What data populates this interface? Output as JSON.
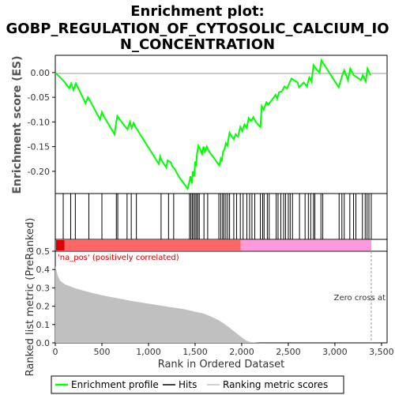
{
  "chart_data": {
    "type": "line",
    "title_lines": [
      "Enrichment plot:",
      "GOBP_REGULATION_OF_CYTOSOLIC_CALCIUM_IO",
      "N_CONCENTRATION"
    ],
    "es_panel": {
      "ylabel": "Enrichment score (ES)",
      "ylim": [
        -0.245,
        0.035
      ],
      "yticks": [
        0.0,
        -0.05,
        -0.1,
        -0.15,
        -0.2
      ],
      "ytick_labels": [
        "0.00",
        "-0.05",
        "-0.10",
        "-0.15",
        "-0.20"
      ],
      "series": {
        "name": "Enrichment profile",
        "color": "#00ff00",
        "x": [
          0,
          95,
          150,
          170,
          195,
          220,
          325,
          350,
          370,
          480,
          500,
          520,
          635,
          650,
          665,
          740,
          775,
          800,
          820,
          840,
          860,
          1110,
          1125,
          1140,
          1190,
          1205,
          1240,
          1255,
          1280,
          1330,
          1420,
          1440,
          1450,
          1465,
          1475,
          1490,
          1500,
          1510,
          1520,
          1535,
          1555,
          1575,
          1590,
          1605,
          1625,
          1650,
          1760,
          1775,
          1785,
          1800,
          1815,
          1830,
          1845,
          1870,
          1895,
          1915,
          1935,
          1960,
          1985,
          2005,
          2030,
          2055,
          2075,
          2100,
          2125,
          2150,
          2200,
          2215,
          2235,
          2265,
          2285,
          2365,
          2380,
          2400,
          2430,
          2460,
          2485,
          2510,
          2535,
          2600,
          2615,
          2665,
          2700,
          2725,
          2750,
          2770,
          2810,
          2835,
          2855,
          3040,
          3080,
          3100,
          3140,
          3165,
          3200,
          3280,
          3300,
          3330,
          3350,
          3380
        ],
        "y": [
          0.0,
          -0.018,
          -0.032,
          -0.022,
          -0.035,
          -0.022,
          -0.062,
          -0.05,
          -0.056,
          -0.095,
          -0.08,
          -0.088,
          -0.125,
          -0.105,
          -0.088,
          -0.107,
          -0.115,
          -0.1,
          -0.112,
          -0.102,
          -0.11,
          -0.185,
          -0.17,
          -0.178,
          -0.192,
          -0.178,
          -0.182,
          -0.19,
          -0.195,
          -0.212,
          -0.235,
          -0.22,
          -0.21,
          -0.225,
          -0.2,
          -0.21,
          -0.18,
          -0.19,
          -0.165,
          -0.148,
          -0.155,
          -0.165,
          -0.15,
          -0.16,
          -0.15,
          -0.16,
          -0.188,
          -0.175,
          -0.18,
          -0.16,
          -0.155,
          -0.143,
          -0.148,
          -0.122,
          -0.13,
          -0.135,
          -0.125,
          -0.13,
          -0.11,
          -0.118,
          -0.105,
          -0.112,
          -0.092,
          -0.098,
          -0.09,
          -0.1,
          -0.11,
          -0.068,
          -0.075,
          -0.06,
          -0.065,
          -0.045,
          -0.053,
          -0.04,
          -0.038,
          -0.028,
          -0.032,
          -0.022,
          -0.012,
          -0.02,
          -0.03,
          -0.02,
          -0.028,
          -0.01,
          -0.018,
          0.015,
          0.005,
          0.0,
          0.025,
          -0.03,
          -0.005,
          0.005,
          -0.015,
          0.008,
          -0.005,
          -0.015,
          -0.005,
          -0.018,
          0.008,
          -0.005
        ]
      }
    },
    "hits": [
      85,
      165,
      215,
      360,
      500,
      655,
      670,
      770,
      815,
      870,
      1135,
      1215,
      1270,
      1440,
      1455,
      1470,
      1485,
      1500,
      1515,
      1530,
      1545,
      1595,
      1635,
      1755,
      1775,
      1795,
      1810,
      1830,
      1850,
      1870,
      1915,
      1945,
      1985,
      2015,
      2055,
      2085,
      2110,
      2140,
      2200,
      2225,
      2240,
      2275,
      2295,
      2370,
      2390,
      2420,
      2450,
      2470,
      2500,
      2520,
      2545,
      2620,
      2680,
      2715,
      2740,
      2770,
      2785,
      2850,
      2870,
      3045,
      3075,
      3100,
      3160,
      3200,
      3225,
      3295,
      3325,
      3345,
      3365,
      3390
    ],
    "ranked_panel": {
      "ylabel": "Ranked list metric (PreRanked)",
      "xlabel": "Rank in Ordered Dataset",
      "ylim": [
        0.0,
        0.5
      ],
      "yticks": [
        0.0,
        0.1,
        0.2,
        0.3,
        0.4,
        0.5
      ],
      "ytick_labels": [
        "0.0",
        "0.1",
        "0.2",
        "0.3",
        "0.4",
        "0.5"
      ],
      "metric_x": [
        0,
        25,
        50,
        100,
        200,
        300,
        400,
        500,
        600,
        700,
        800,
        900,
        1000,
        1100,
        1200,
        1300,
        1400,
        1500,
        1550,
        1600,
        1650,
        1700,
        1750,
        1800,
        1850,
        1900,
        1950,
        2000,
        2050,
        2100,
        2150,
        2200,
        2250,
        3400
      ],
      "metric_y": [
        0.42,
        0.37,
        0.34,
        0.32,
        0.3,
        0.285,
        0.272,
        0.26,
        0.25,
        0.24,
        0.23,
        0.222,
        0.214,
        0.206,
        0.198,
        0.19,
        0.182,
        0.17,
        0.165,
        0.158,
        0.148,
        0.137,
        0.124,
        0.108,
        0.09,
        0.07,
        0.05,
        0.03,
        0.012,
        0.004,
        0.001,
        0.0,
        0.0,
        0.0
      ],
      "fill_color": "#c0c0c0",
      "na_pos_label": "'na_pos' (positively correlated)",
      "zero_cross_label": "Zero cross at",
      "zero_cross_x": 3390
    },
    "xlim": [
      0,
      3560
    ],
    "xticks": [
      0,
      500,
      1000,
      1500,
      2000,
      2500,
      3000,
      3500
    ],
    "xtick_labels": [
      "0",
      "500",
      "1,000",
      "1,500",
      "2,000",
      "2,500",
      "3,000",
      "3,500"
    ],
    "legend": {
      "items": [
        "Enrichment profile",
        "Hits",
        "Ranking metric scores"
      ],
      "placement": "bottom"
    },
    "colors": {
      "profile": "#00ff00",
      "hits": "#000000",
      "pos_bar": "#dd0000",
      "pos_bar_light": "#ff6666",
      "neg_bar": "#ff99dd",
      "na_pos_text": "#cc0000"
    }
  }
}
